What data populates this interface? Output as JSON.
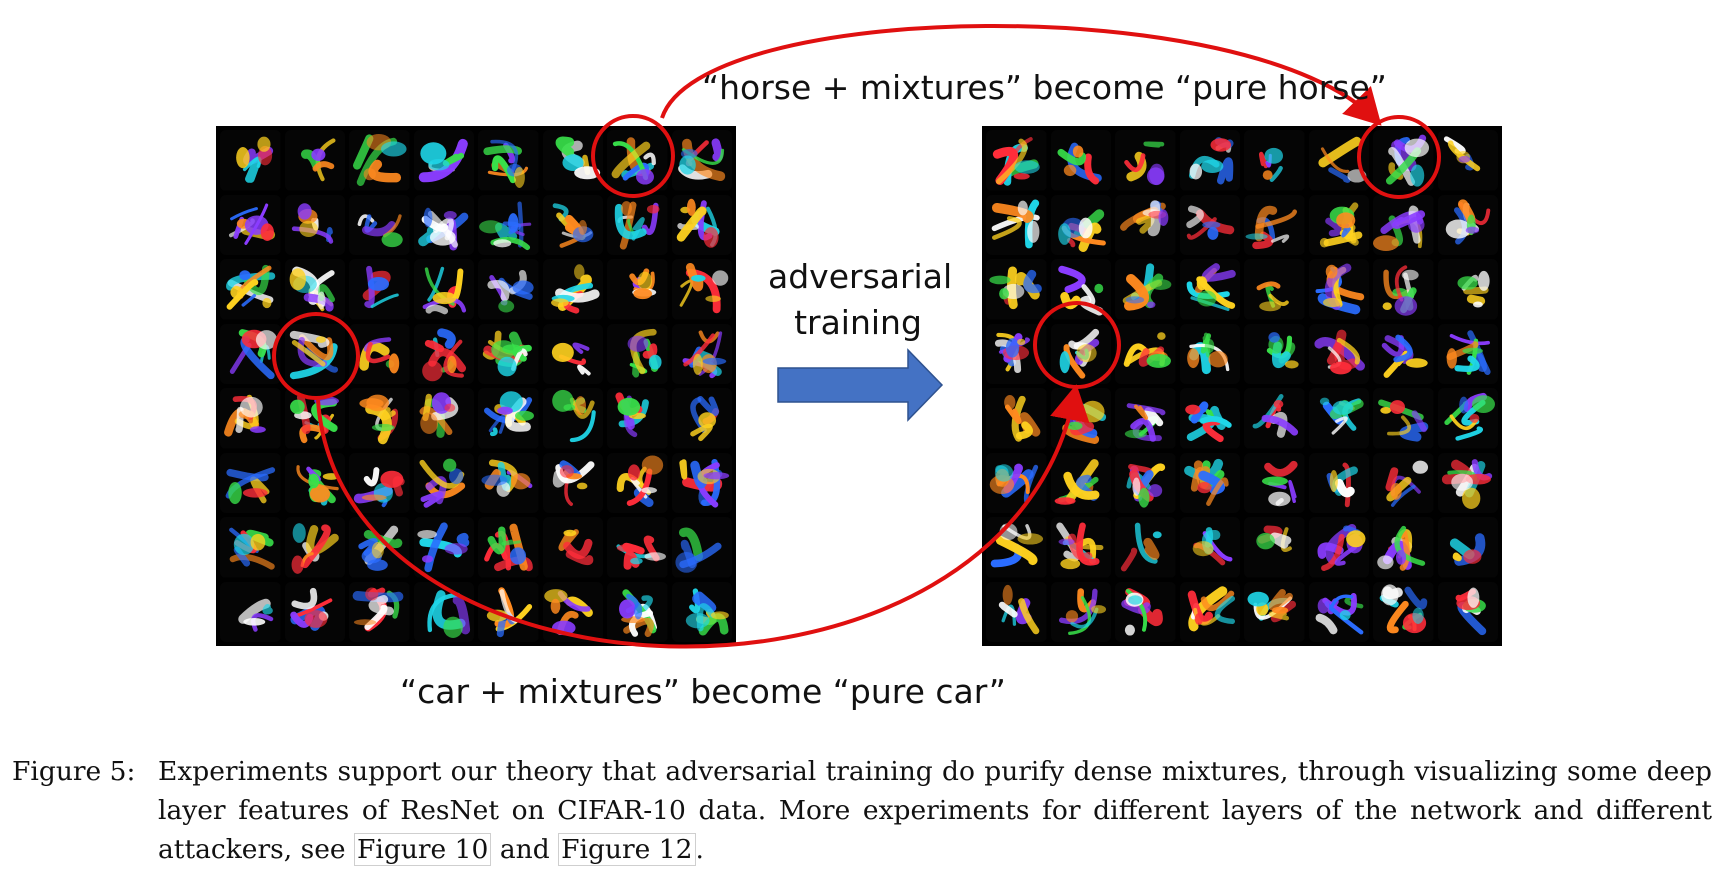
{
  "annotations": {
    "top": "“horse + mixtures” become “pure horse”",
    "middle_line1": "adversarial",
    "middle_line2": "training",
    "bottom": "“car + mixtures” become “pure car”"
  },
  "colors": {
    "annotation_red": "#e01010",
    "arrow_blue": "#4472c4",
    "panel_background": "#000000"
  },
  "caption": {
    "label": "Figure 5:",
    "text": "Experiments support our theory that adversarial training do purify dense mixtures, through visualizing some deep layer features of ResNet on CIFAR-10 data. More experiments for different layers of the network and different attackers, see",
    "link1": "Figure 10",
    "connector": "and",
    "link2": "Figure 12",
    "end": "."
  }
}
